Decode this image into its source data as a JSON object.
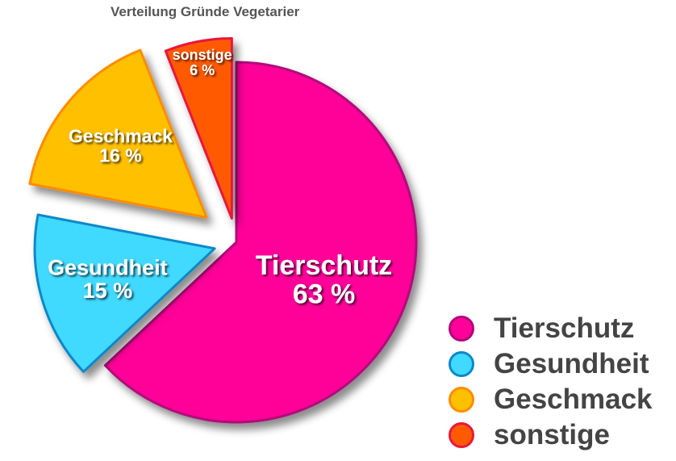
{
  "chart_data": {
    "type": "pie",
    "title": "Verteilung Gründe Vegetarier",
    "categories": [
      "Tierschutz",
      "Gesundheit",
      "Geschmack",
      "sonstige"
    ],
    "values": [
      63,
      15,
      16,
      6
    ],
    "value_labels": [
      "63 %",
      "15 %",
      "16 %",
      "6 %"
    ],
    "colors": [
      "#ff0099",
      "#40d9ff",
      "#ffc000",
      "#ff5a00"
    ],
    "edge_colors": [
      "#b0087a",
      "#0a88c8",
      "#ff8c00",
      "#e8183c"
    ],
    "legend_position": "bottom-right"
  }
}
